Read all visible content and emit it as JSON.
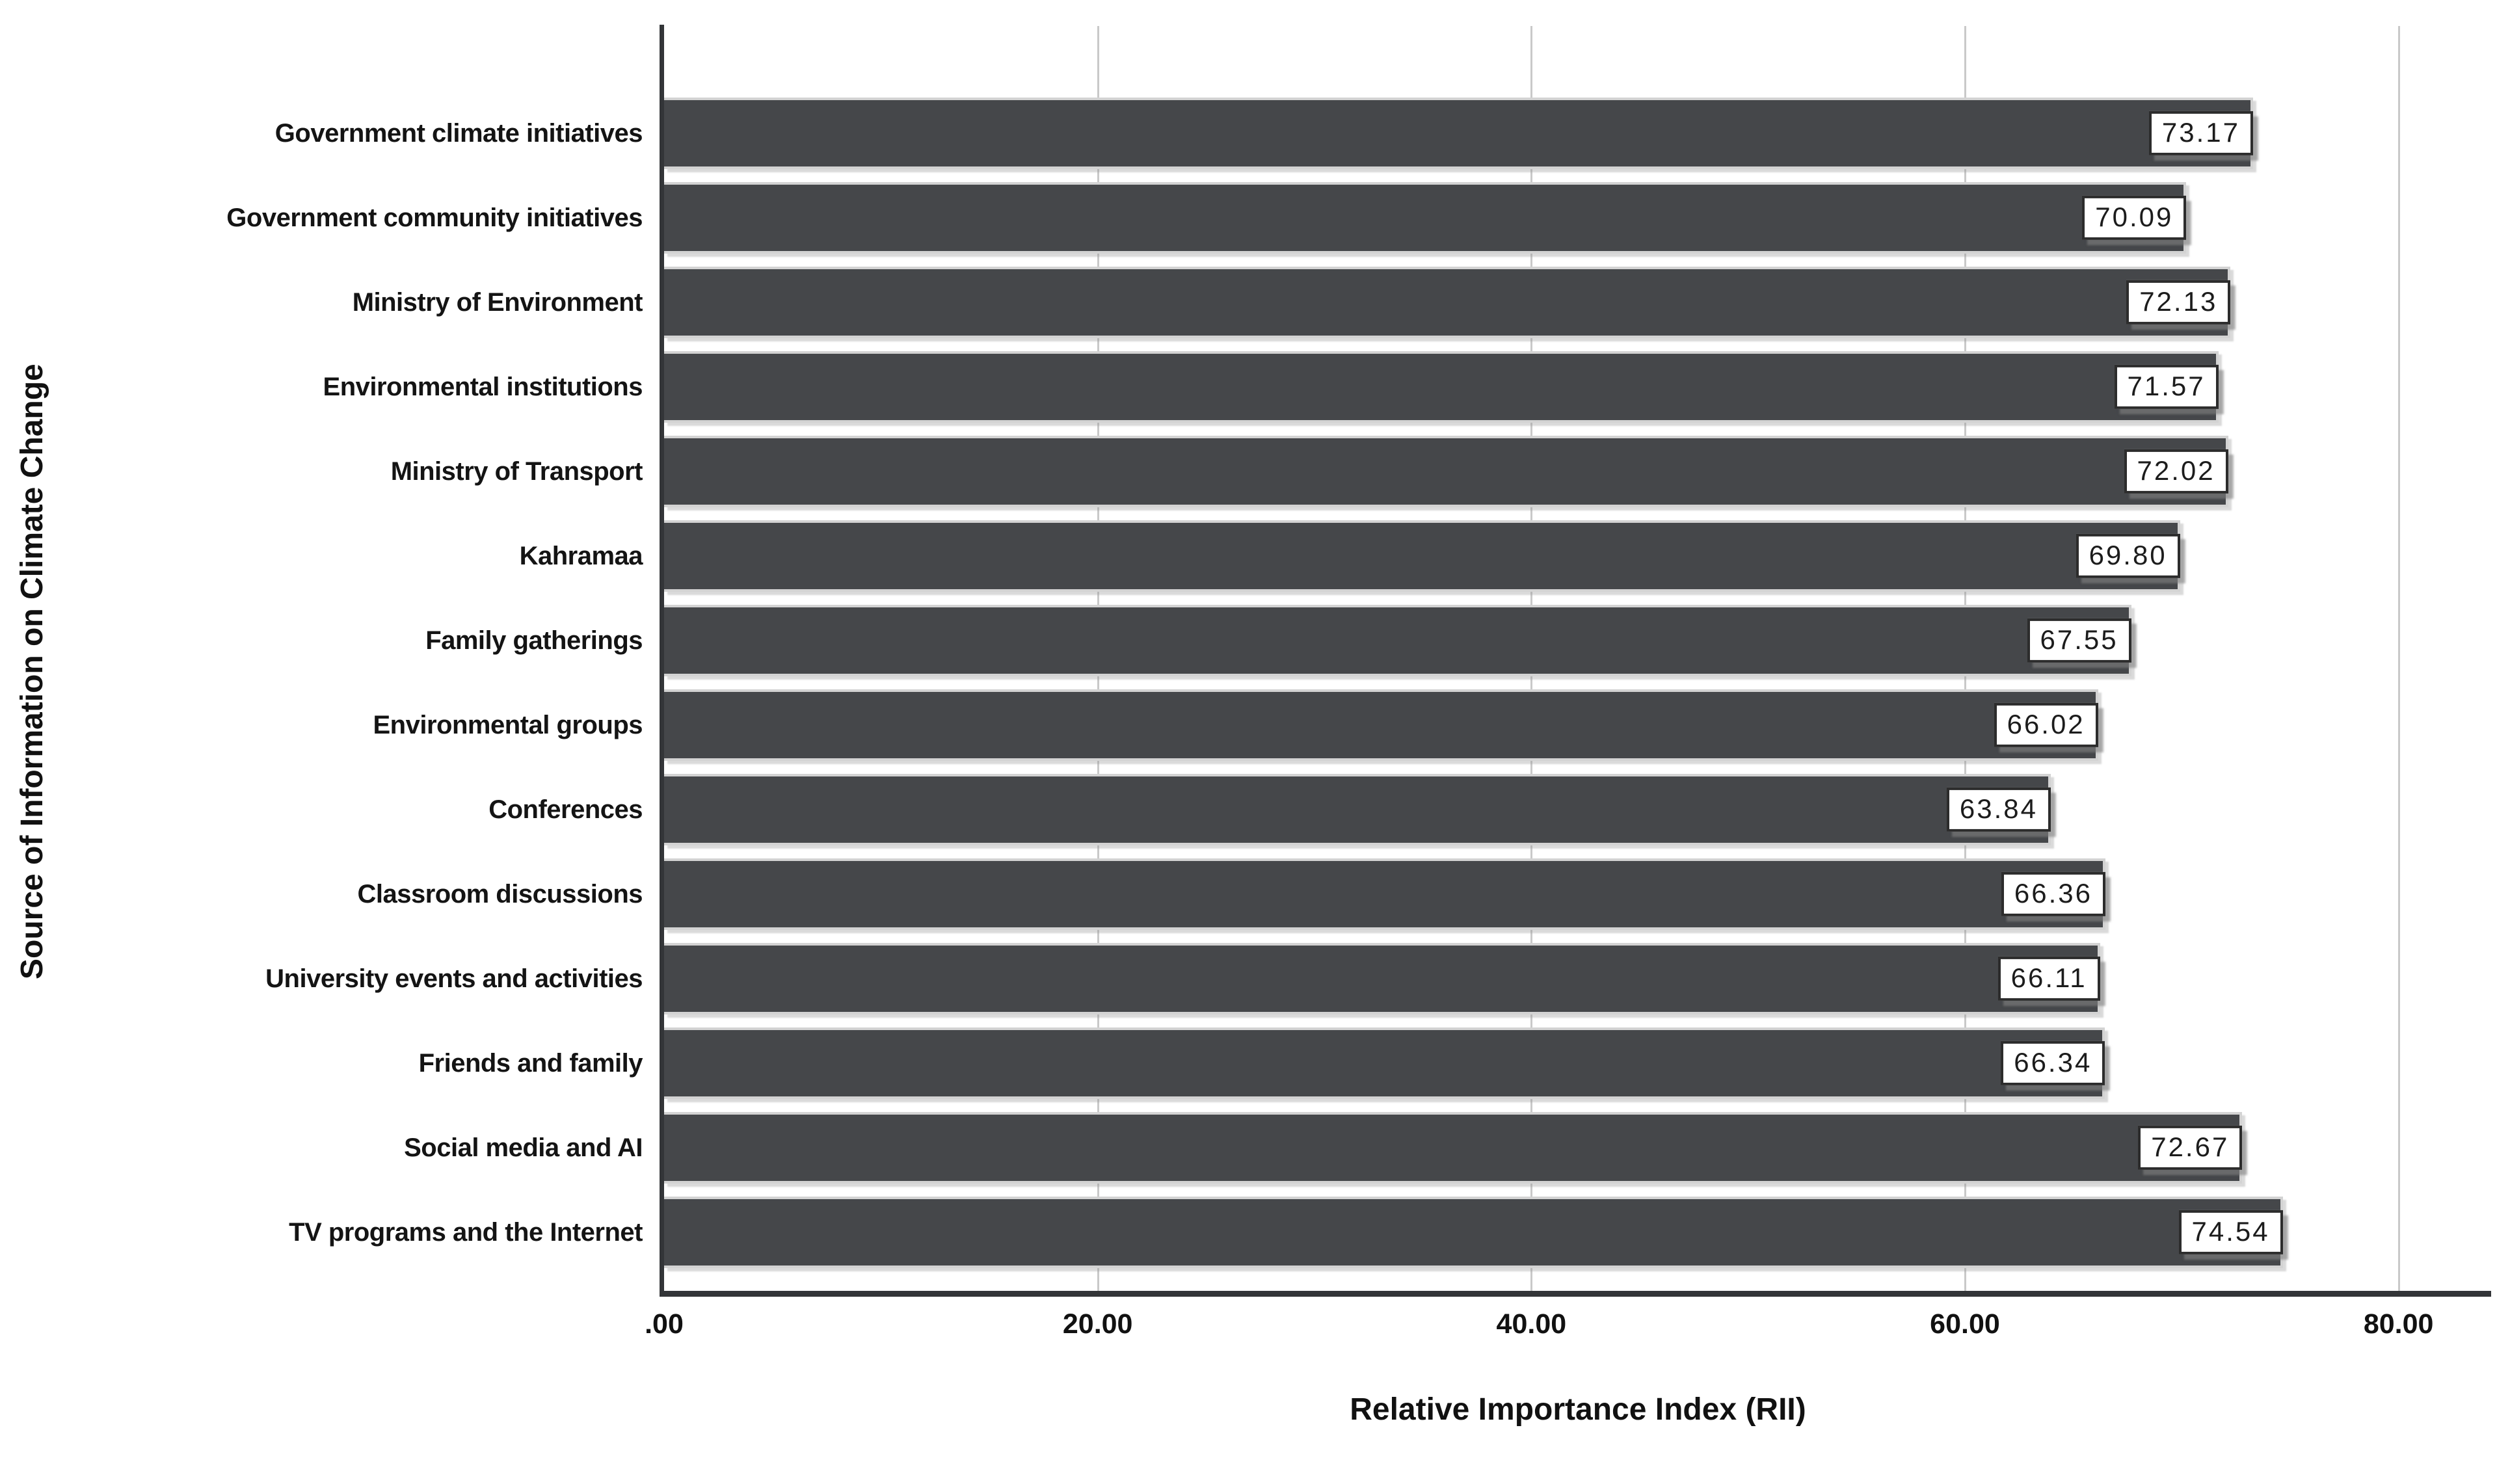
{
  "chart_data": {
    "type": "bar",
    "orientation": "horizontal",
    "title": "",
    "xlabel": "Relative Importance Index (RII)",
    "ylabel": "Source of Information on Climate Change",
    "categories": [
      "Government climate initiatives",
      "Government community initiatives",
      "Ministry of Environment",
      "Environmental institutions",
      "Ministry of Transport",
      "Kahramaa",
      "Family gatherings",
      "Environmental groups",
      "Conferences",
      "Classroom discussions",
      "University events and activities",
      "Friends and family",
      "Social media and AI",
      "TV programs and the Internet"
    ],
    "values": [
      73.17,
      70.09,
      72.13,
      71.57,
      72.02,
      69.8,
      67.55,
      66.02,
      63.84,
      66.36,
      66.11,
      66.34,
      72.67,
      74.54
    ],
    "value_labels": [
      "73.17",
      "70.09",
      "72.13",
      "71.57",
      "72.02",
      "69.80",
      "67.55",
      "66.02",
      "63.84",
      "66.36",
      "66.11",
      "66.34",
      "72.67",
      "74.54"
    ],
    "xlim": [
      0,
      84.3
    ],
    "x_ticks": [
      {
        "value": 0,
        "label": ".00"
      },
      {
        "value": 20,
        "label": "20.00"
      },
      {
        "value": 40,
        "label": "40.00"
      },
      {
        "value": 60,
        "label": "60.00"
      },
      {
        "value": 80,
        "label": "80.00"
      }
    ],
    "grid": "vertical gridlines at x ticks, behind bars",
    "legend": "none",
    "value_label_style": "white box with dark border and gray drop shadow at end of each bar",
    "colors": {
      "bar": "#45474a",
      "bar_edge": "#d3d3d3",
      "gridline": "#c9c9c9",
      "axis_line": "#333538",
      "label_box_bg": "#ffffff",
      "label_box_border": "#2c2c2c",
      "text": "#111111",
      "background": "#ffffff"
    }
  }
}
